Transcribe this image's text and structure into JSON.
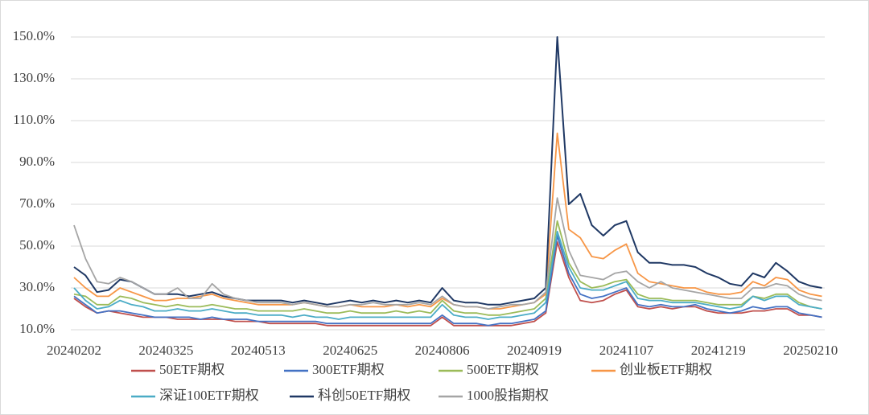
{
  "chart_data": {
    "type": "line",
    "categories": [
      "20240202",
      null,
      null,
      null,
      null,
      null,
      null,
      null,
      "20240325",
      null,
      null,
      null,
      null,
      null,
      null,
      null,
      "20240513",
      null,
      null,
      null,
      null,
      null,
      null,
      null,
      "20240625",
      null,
      null,
      null,
      null,
      null,
      null,
      null,
      "20240806",
      null,
      null,
      null,
      null,
      null,
      null,
      null,
      "20240919",
      null,
      null,
      null,
      null,
      null,
      null,
      null,
      "20241107",
      null,
      null,
      null,
      null,
      null,
      null,
      null,
      "20241219",
      null,
      null,
      null,
      null,
      null,
      null,
      null,
      "20250210",
      null
    ],
    "ylim": [
      10,
      150
    ],
    "yticks": [
      {
        "value": 10,
        "label": "10.0%"
      },
      {
        "value": 30,
        "label": "30.0%"
      },
      {
        "value": 50,
        "label": "50.0%"
      },
      {
        "value": 70,
        "label": "70.0%"
      },
      {
        "value": 90,
        "label": "90.0%"
      },
      {
        "value": 110,
        "label": "110.0%"
      },
      {
        "value": 130,
        "label": "130.0%"
      },
      {
        "value": 150,
        "label": "150.0%"
      }
    ],
    "grid": true,
    "series": [
      {
        "name": "50ETF期权",
        "color": "#c0504d",
        "values": [
          25,
          21,
          18,
          19,
          18,
          17,
          16,
          16,
          16,
          15,
          15,
          15,
          15,
          15,
          14,
          14,
          14,
          13,
          13,
          13,
          13,
          13,
          12,
          12,
          12,
          12,
          12,
          12,
          12,
          12,
          12,
          12,
          16,
          12,
          12,
          12,
          12,
          12,
          12,
          13,
          14,
          18,
          52,
          35,
          24,
          23,
          24,
          27,
          29,
          21,
          20,
          21,
          20,
          21,
          21,
          19,
          18,
          18,
          18,
          19,
          19,
          20,
          20,
          17,
          17,
          16
        ]
      },
      {
        "name": "300ETF期权",
        "color": "#4472c4",
        "values": [
          26,
          22,
          18,
          19,
          19,
          18,
          17,
          16,
          16,
          16,
          16,
          15,
          16,
          15,
          15,
          15,
          14,
          14,
          14,
          14,
          14,
          14,
          13,
          13,
          13,
          13,
          13,
          13,
          13,
          13,
          13,
          13,
          17,
          13,
          13,
          13,
          12,
          13,
          13,
          14,
          15,
          19,
          55,
          37,
          27,
          25,
          26,
          28,
          30,
          22,
          21,
          22,
          21,
          21,
          22,
          20,
          19,
          18,
          19,
          21,
          20,
          21,
          21,
          18,
          17,
          16
        ]
      },
      {
        "name": "500ETF期权",
        "color": "#9bbb59",
        "values": [
          27,
          26,
          22,
          22,
          26,
          25,
          23,
          22,
          21,
          22,
          21,
          21,
          22,
          21,
          20,
          20,
          19,
          19,
          19,
          19,
          20,
          19,
          18,
          18,
          19,
          18,
          18,
          18,
          19,
          18,
          19,
          18,
          24,
          19,
          18,
          18,
          17,
          17,
          18,
          19,
          20,
          25,
          62,
          42,
          33,
          30,
          31,
          33,
          34,
          27,
          25,
          25,
          24,
          24,
          24,
          23,
          22,
          22,
          22,
          26,
          25,
          27,
          27,
          23,
          21,
          20
        ]
      },
      {
        "name": "创业板ETF期权",
        "color": "#f79646",
        "values": [
          35,
          30,
          26,
          26,
          30,
          28,
          26,
          24,
          24,
          25,
          25,
          26,
          27,
          25,
          24,
          23,
          22,
          22,
          22,
          22,
          23,
          22,
          21,
          21,
          22,
          21,
          21,
          21,
          22,
          21,
          22,
          21,
          25,
          22,
          21,
          21,
          20,
          20,
          21,
          22,
          23,
          27,
          104,
          58,
          54,
          45,
          44,
          48,
          51,
          37,
          33,
          32,
          31,
          30,
          30,
          28,
          27,
          27,
          28,
          33,
          31,
          35,
          34,
          29,
          27,
          26
        ]
      },
      {
        "name": "深证100ETF期权",
        "color": "#4bacc6",
        "values": [
          30,
          24,
          20,
          21,
          24,
          22,
          21,
          19,
          19,
          20,
          19,
          19,
          20,
          19,
          18,
          18,
          17,
          17,
          17,
          16,
          17,
          16,
          16,
          15,
          16,
          16,
          16,
          16,
          16,
          16,
          16,
          16,
          22,
          17,
          16,
          16,
          15,
          16,
          16,
          17,
          18,
          23,
          57,
          40,
          30,
          29,
          29,
          31,
          33,
          25,
          24,
          24,
          23,
          23,
          23,
          22,
          21,
          20,
          21,
          26,
          24,
          26,
          26,
          22,
          21,
          20
        ]
      },
      {
        "name": "科创50ETF期权",
        "color": "#1f3864",
        "values": [
          40,
          36,
          28,
          29,
          34,
          33,
          30,
          27,
          27,
          27,
          26,
          27,
          28,
          26,
          25,
          24,
          24,
          24,
          24,
          23,
          24,
          23,
          22,
          23,
          24,
          23,
          24,
          23,
          24,
          23,
          24,
          23,
          30,
          24,
          23,
          23,
          22,
          22,
          23,
          24,
          25,
          30,
          150,
          70,
          75,
          60,
          55,
          60,
          62,
          47,
          42,
          42,
          41,
          41,
          40,
          37,
          35,
          32,
          31,
          37,
          35,
          42,
          38,
          33,
          31,
          30
        ]
      },
      {
        "name": "1000股指期权",
        "color": "#a5a5a5",
        "values": [
          60,
          44,
          33,
          32,
          35,
          33,
          30,
          27,
          27,
          30,
          25,
          25,
          32,
          27,
          25,
          24,
          23,
          23,
          23,
          22,
          23,
          22,
          21,
          21,
          22,
          22,
          23,
          22,
          22,
          22,
          23,
          22,
          26,
          22,
          21,
          21,
          20,
          21,
          22,
          22,
          23,
          28,
          73,
          48,
          36,
          35,
          34,
          37,
          38,
          33,
          30,
          33,
          30,
          29,
          28,
          27,
          26,
          25,
          25,
          30,
          30,
          32,
          31,
          27,
          25,
          24
        ]
      }
    ]
  }
}
